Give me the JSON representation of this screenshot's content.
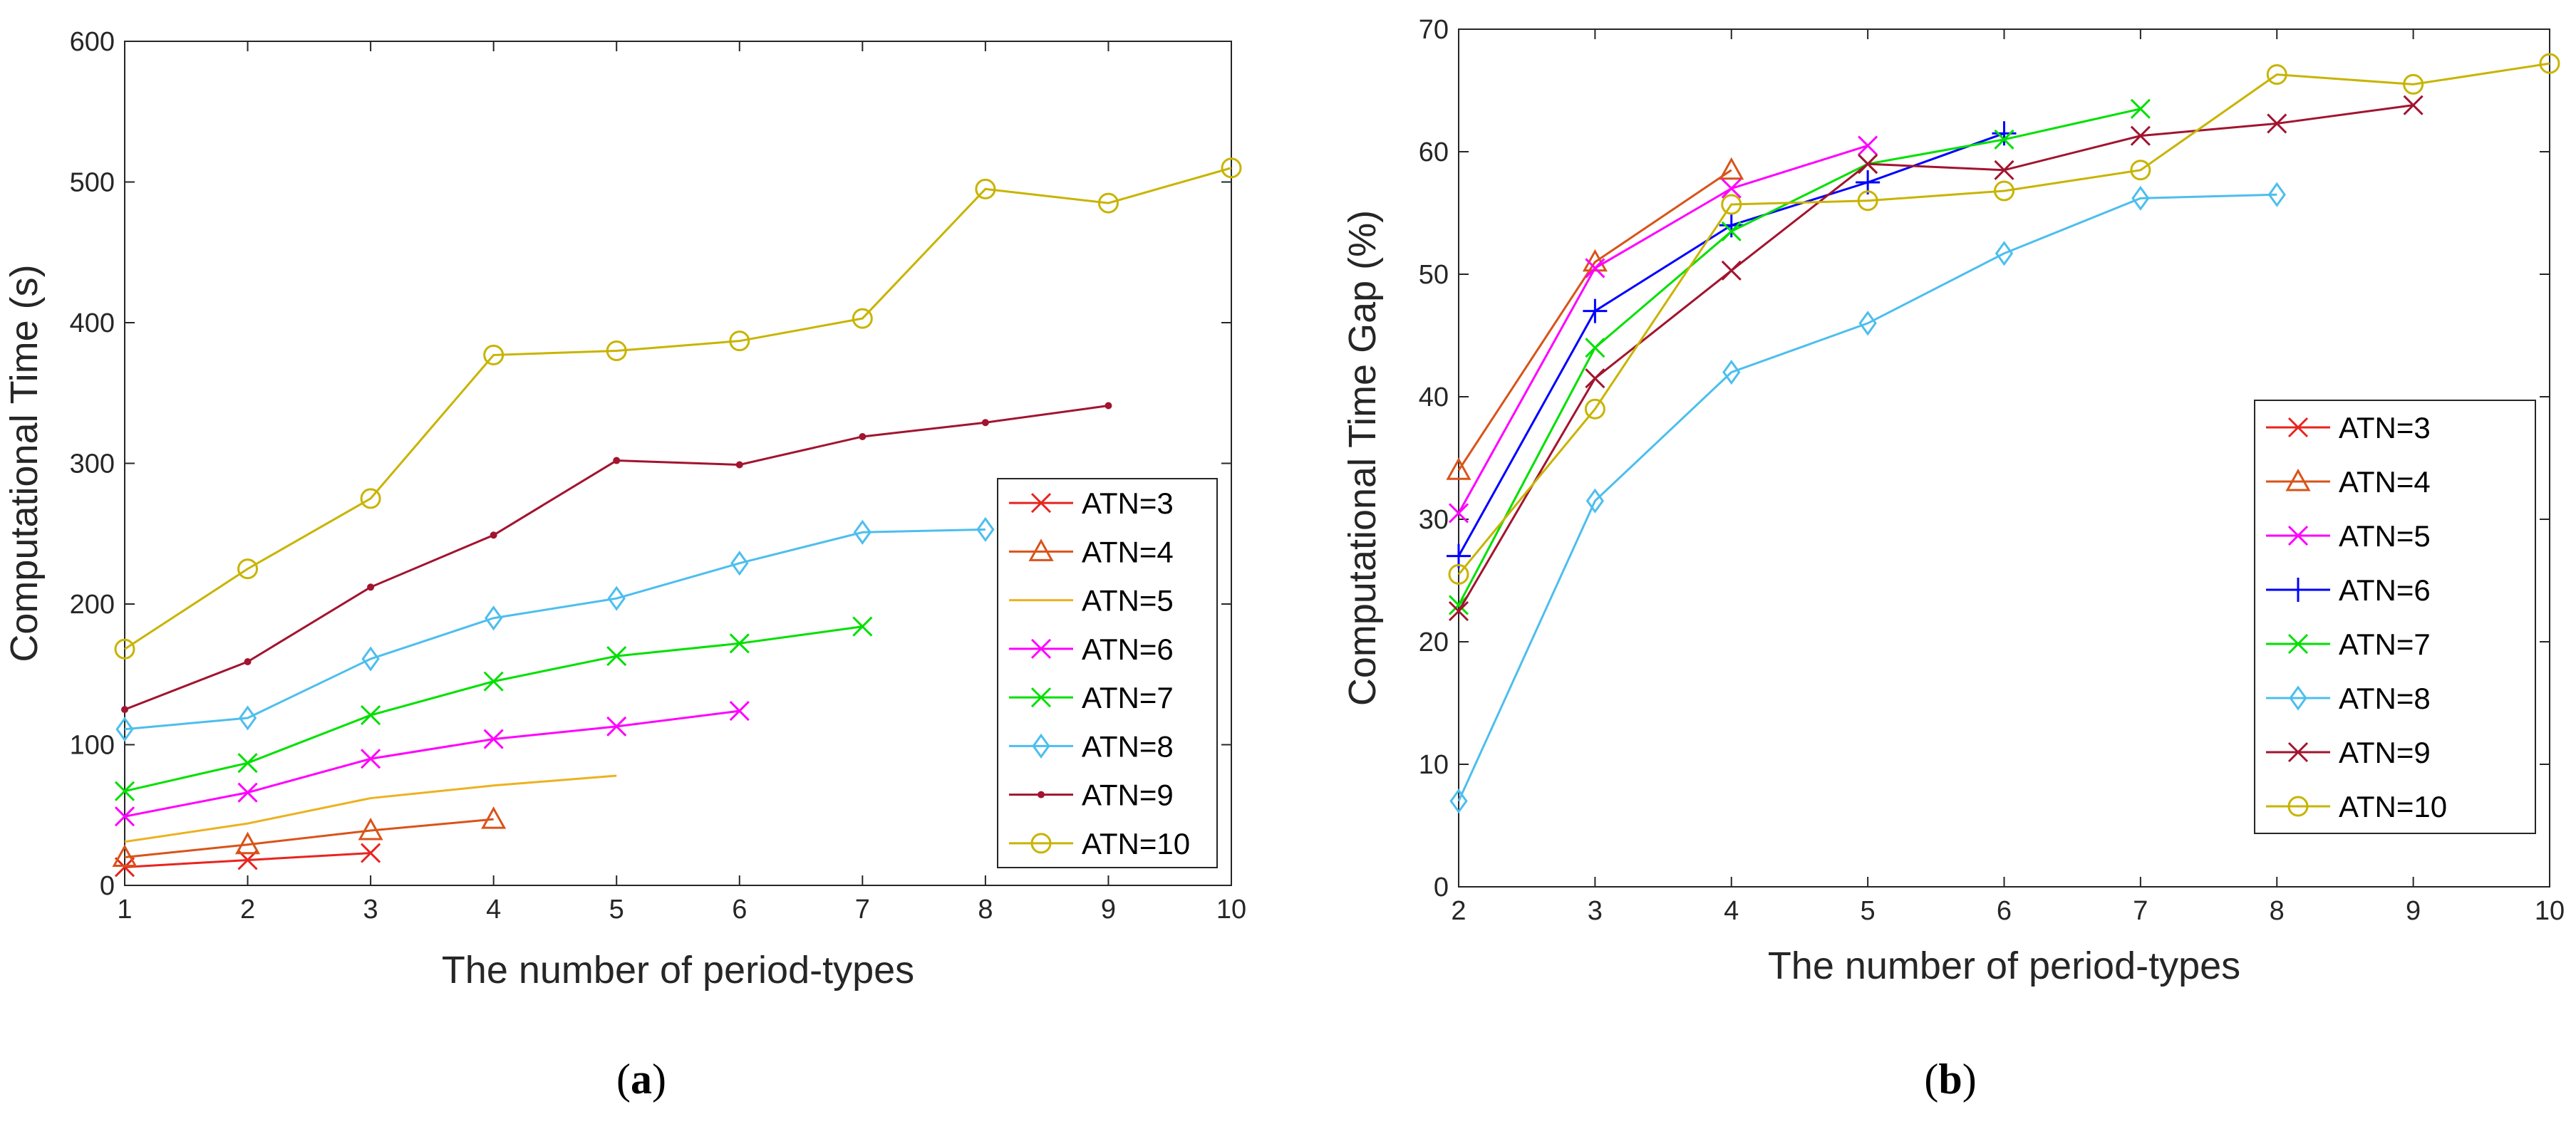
{
  "chart_data": [
    {
      "type": "line",
      "caption_open": "(",
      "caption_letter": "a",
      "caption_close": ")",
      "xlabel": "The number of period-types",
      "ylabel": "Computational Time (s)",
      "xlim": [
        1,
        10
      ],
      "ylim": [
        0,
        600
      ],
      "xticks": [
        1,
        2,
        3,
        4,
        5,
        6,
        7,
        8,
        9,
        10
      ],
      "yticks": [
        0,
        100,
        200,
        300,
        400,
        500,
        600
      ],
      "legend_position": "center-right",
      "series": [
        {
          "name": "ATN=3",
          "color": "#e8241f",
          "marker": "x",
          "x": [
            1,
            2,
            3
          ],
          "y": [
            13,
            18,
            23
          ]
        },
        {
          "name": "ATN=4",
          "color": "#d95319",
          "marker": "triangle",
          "x": [
            1,
            2,
            3,
            4
          ],
          "y": [
            20,
            29,
            39,
            47
          ]
        },
        {
          "name": "ATN=5",
          "color": "#edb120",
          "marker": "none",
          "x": [
            1,
            2,
            3,
            4,
            5
          ],
          "y": [
            31,
            44,
            62,
            71,
            78
          ]
        },
        {
          "name": "ATN=6",
          "color": "#ff00ff",
          "marker": "x",
          "x": [
            1,
            2,
            3,
            4,
            5,
            6
          ],
          "y": [
            49,
            66,
            90,
            104,
            113,
            124
          ]
        },
        {
          "name": "ATN=7",
          "color": "#00e000",
          "marker": "x",
          "x": [
            1,
            2,
            3,
            4,
            5,
            6,
            7
          ],
          "y": [
            67,
            87,
            121,
            145,
            163,
            172,
            184
          ]
        },
        {
          "name": "ATN=8",
          "color": "#4dbeee",
          "marker": "diamond",
          "x": [
            1,
            2,
            3,
            4,
            5,
            6,
            7,
            8
          ],
          "y": [
            111,
            119,
            161,
            190,
            204,
            229,
            251,
            253
          ]
        },
        {
          "name": "ATN=9",
          "color": "#a2142f",
          "marker": "dot",
          "x": [
            1,
            2,
            3,
            4,
            5,
            6,
            7,
            8,
            9
          ],
          "y": [
            125,
            159,
            212,
            249,
            302,
            299,
            319,
            329,
            341
          ]
        },
        {
          "name": "ATN=10",
          "color": "#c8b400",
          "marker": "circle",
          "x": [
            1,
            2,
            3,
            4,
            5,
            6,
            7,
            8,
            9,
            10
          ],
          "y": [
            168,
            225,
            275,
            377,
            380,
            387,
            403,
            495,
            485,
            510
          ]
        }
      ]
    },
    {
      "type": "line",
      "caption_open": "(",
      "caption_letter": "b",
      "caption_close": ")",
      "xlabel": "The number of period-types",
      "ylabel": "Computational Time Gap (%)",
      "xlim": [
        2,
        10
      ],
      "ylim": [
        0,
        70
      ],
      "xticks": [
        2,
        3,
        4,
        5,
        6,
        7,
        8,
        9,
        10
      ],
      "yticks": [
        0,
        10,
        20,
        30,
        40,
        50,
        60,
        70
      ],
      "legend_position": "bottom-right",
      "series": [
        {
          "name": "ATN=3",
          "color": "#e8241f",
          "marker": "x",
          "x": [],
          "y": []
        },
        {
          "name": "ATN=4",
          "color": "#d95319",
          "marker": "triangle",
          "x": [
            2,
            3,
            4
          ],
          "y": [
            34,
            51,
            58.5
          ]
        },
        {
          "name": "ATN=5",
          "color": "#ff00ff",
          "marker": "x",
          "x": [
            2,
            3,
            4,
            5
          ],
          "y": [
            30.5,
            50.5,
            57,
            60.5
          ]
        },
        {
          "name": "ATN=6",
          "color": "#0000ff",
          "marker": "plus",
          "x": [
            2,
            3,
            4,
            5,
            6
          ],
          "y": [
            27,
            47,
            54,
            57.5,
            61.5
          ]
        },
        {
          "name": "ATN=7",
          "color": "#00e000",
          "marker": "x",
          "x": [
            2,
            3,
            4,
            5,
            6,
            7
          ],
          "y": [
            23,
            44,
            53.5,
            59,
            61,
            63.5
          ]
        },
        {
          "name": "ATN=8",
          "color": "#4dbeee",
          "marker": "diamond",
          "x": [
            2,
            3,
            4,
            5,
            6,
            7,
            8
          ],
          "y": [
            7,
            31.5,
            42,
            46,
            51.7,
            56.2,
            56.5
          ]
        },
        {
          "name": "ATN=9",
          "color": "#a2142f",
          "marker": "x",
          "x": [
            2,
            3,
            4,
            5,
            6,
            7,
            8,
            9
          ],
          "y": [
            22.5,
            41.5,
            50.3,
            59,
            58.5,
            61.3,
            62.3,
            63.8
          ]
        },
        {
          "name": "ATN=10",
          "color": "#c8b400",
          "marker": "circle",
          "x": [
            2,
            3,
            4,
            5,
            6,
            7,
            8,
            9,
            10
          ],
          "y": [
            25.5,
            39,
            55.7,
            56,
            56.8,
            58.5,
            66.3,
            65.5,
            67.2
          ]
        }
      ]
    }
  ]
}
